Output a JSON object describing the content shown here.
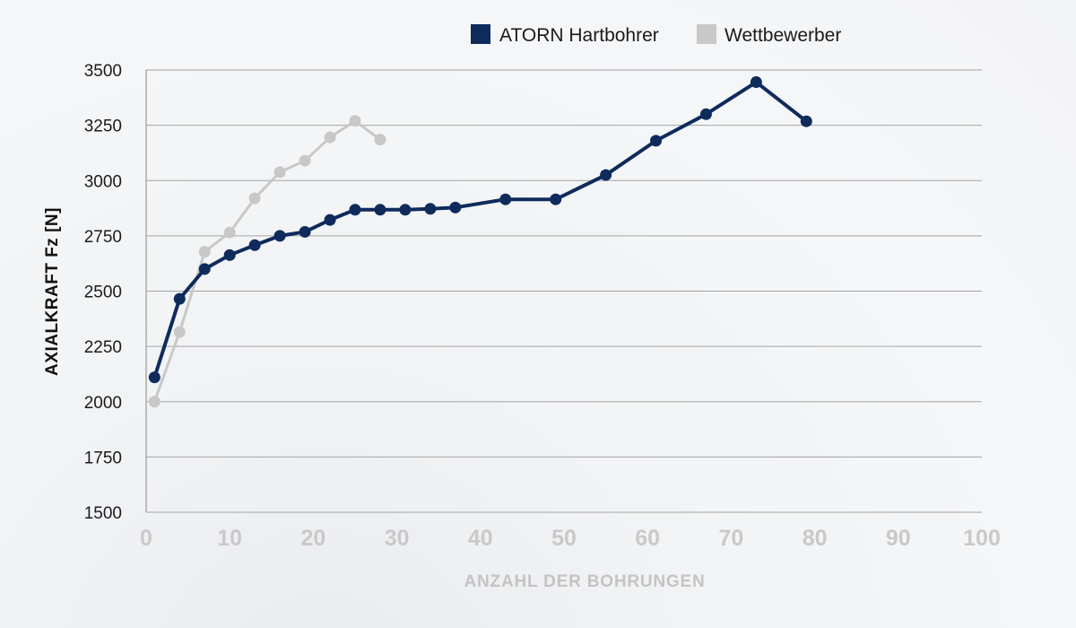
{
  "chart_data": {
    "type": "line",
    "title": "",
    "xlabel": "ANZAHL DER BOHRUNGEN",
    "ylabel": "AXIALKRAFT Fz [N]",
    "xlim": [
      0,
      100
    ],
    "ylim": [
      1500,
      3500
    ],
    "x_ticks": [
      "0",
      "10",
      "20",
      "30",
      "40",
      "50",
      "60",
      "70",
      "80",
      "90",
      "100"
    ],
    "y_ticks": [
      "3500",
      "3250",
      "3000",
      "2750",
      "2500",
      "2250",
      "2000",
      "1750",
      "1500"
    ],
    "grid": "horizontal",
    "legend_position": "top",
    "series": [
      {
        "name": "ATORN Hartbohrer",
        "color": "#0f2b5c",
        "points": [
          [
            1,
            2110
          ],
          [
            4,
            2465
          ],
          [
            7,
            2600
          ],
          [
            10,
            2663
          ],
          [
            13,
            2708
          ],
          [
            16,
            2750
          ],
          [
            19,
            2768
          ],
          [
            22,
            2822
          ],
          [
            25,
            2868
          ],
          [
            28,
            2868
          ],
          [
            31,
            2868
          ],
          [
            34,
            2872
          ],
          [
            37,
            2878
          ],
          [
            43,
            2915
          ],
          [
            49,
            2915
          ],
          [
            55,
            3025
          ],
          [
            61,
            3180
          ],
          [
            67,
            3300
          ],
          [
            73,
            3445
          ],
          [
            79,
            3268
          ]
        ]
      },
      {
        "name": "Wettbewerber",
        "color": "#c8c8c8",
        "points": [
          [
            1,
            2000
          ],
          [
            4,
            2315
          ],
          [
            7,
            2678
          ],
          [
            10,
            2765
          ],
          [
            13,
            2920
          ],
          [
            16,
            3038
          ],
          [
            19,
            3090
          ],
          [
            22,
            3195
          ],
          [
            25,
            3270
          ],
          [
            28,
            3185
          ]
        ]
      }
    ]
  }
}
